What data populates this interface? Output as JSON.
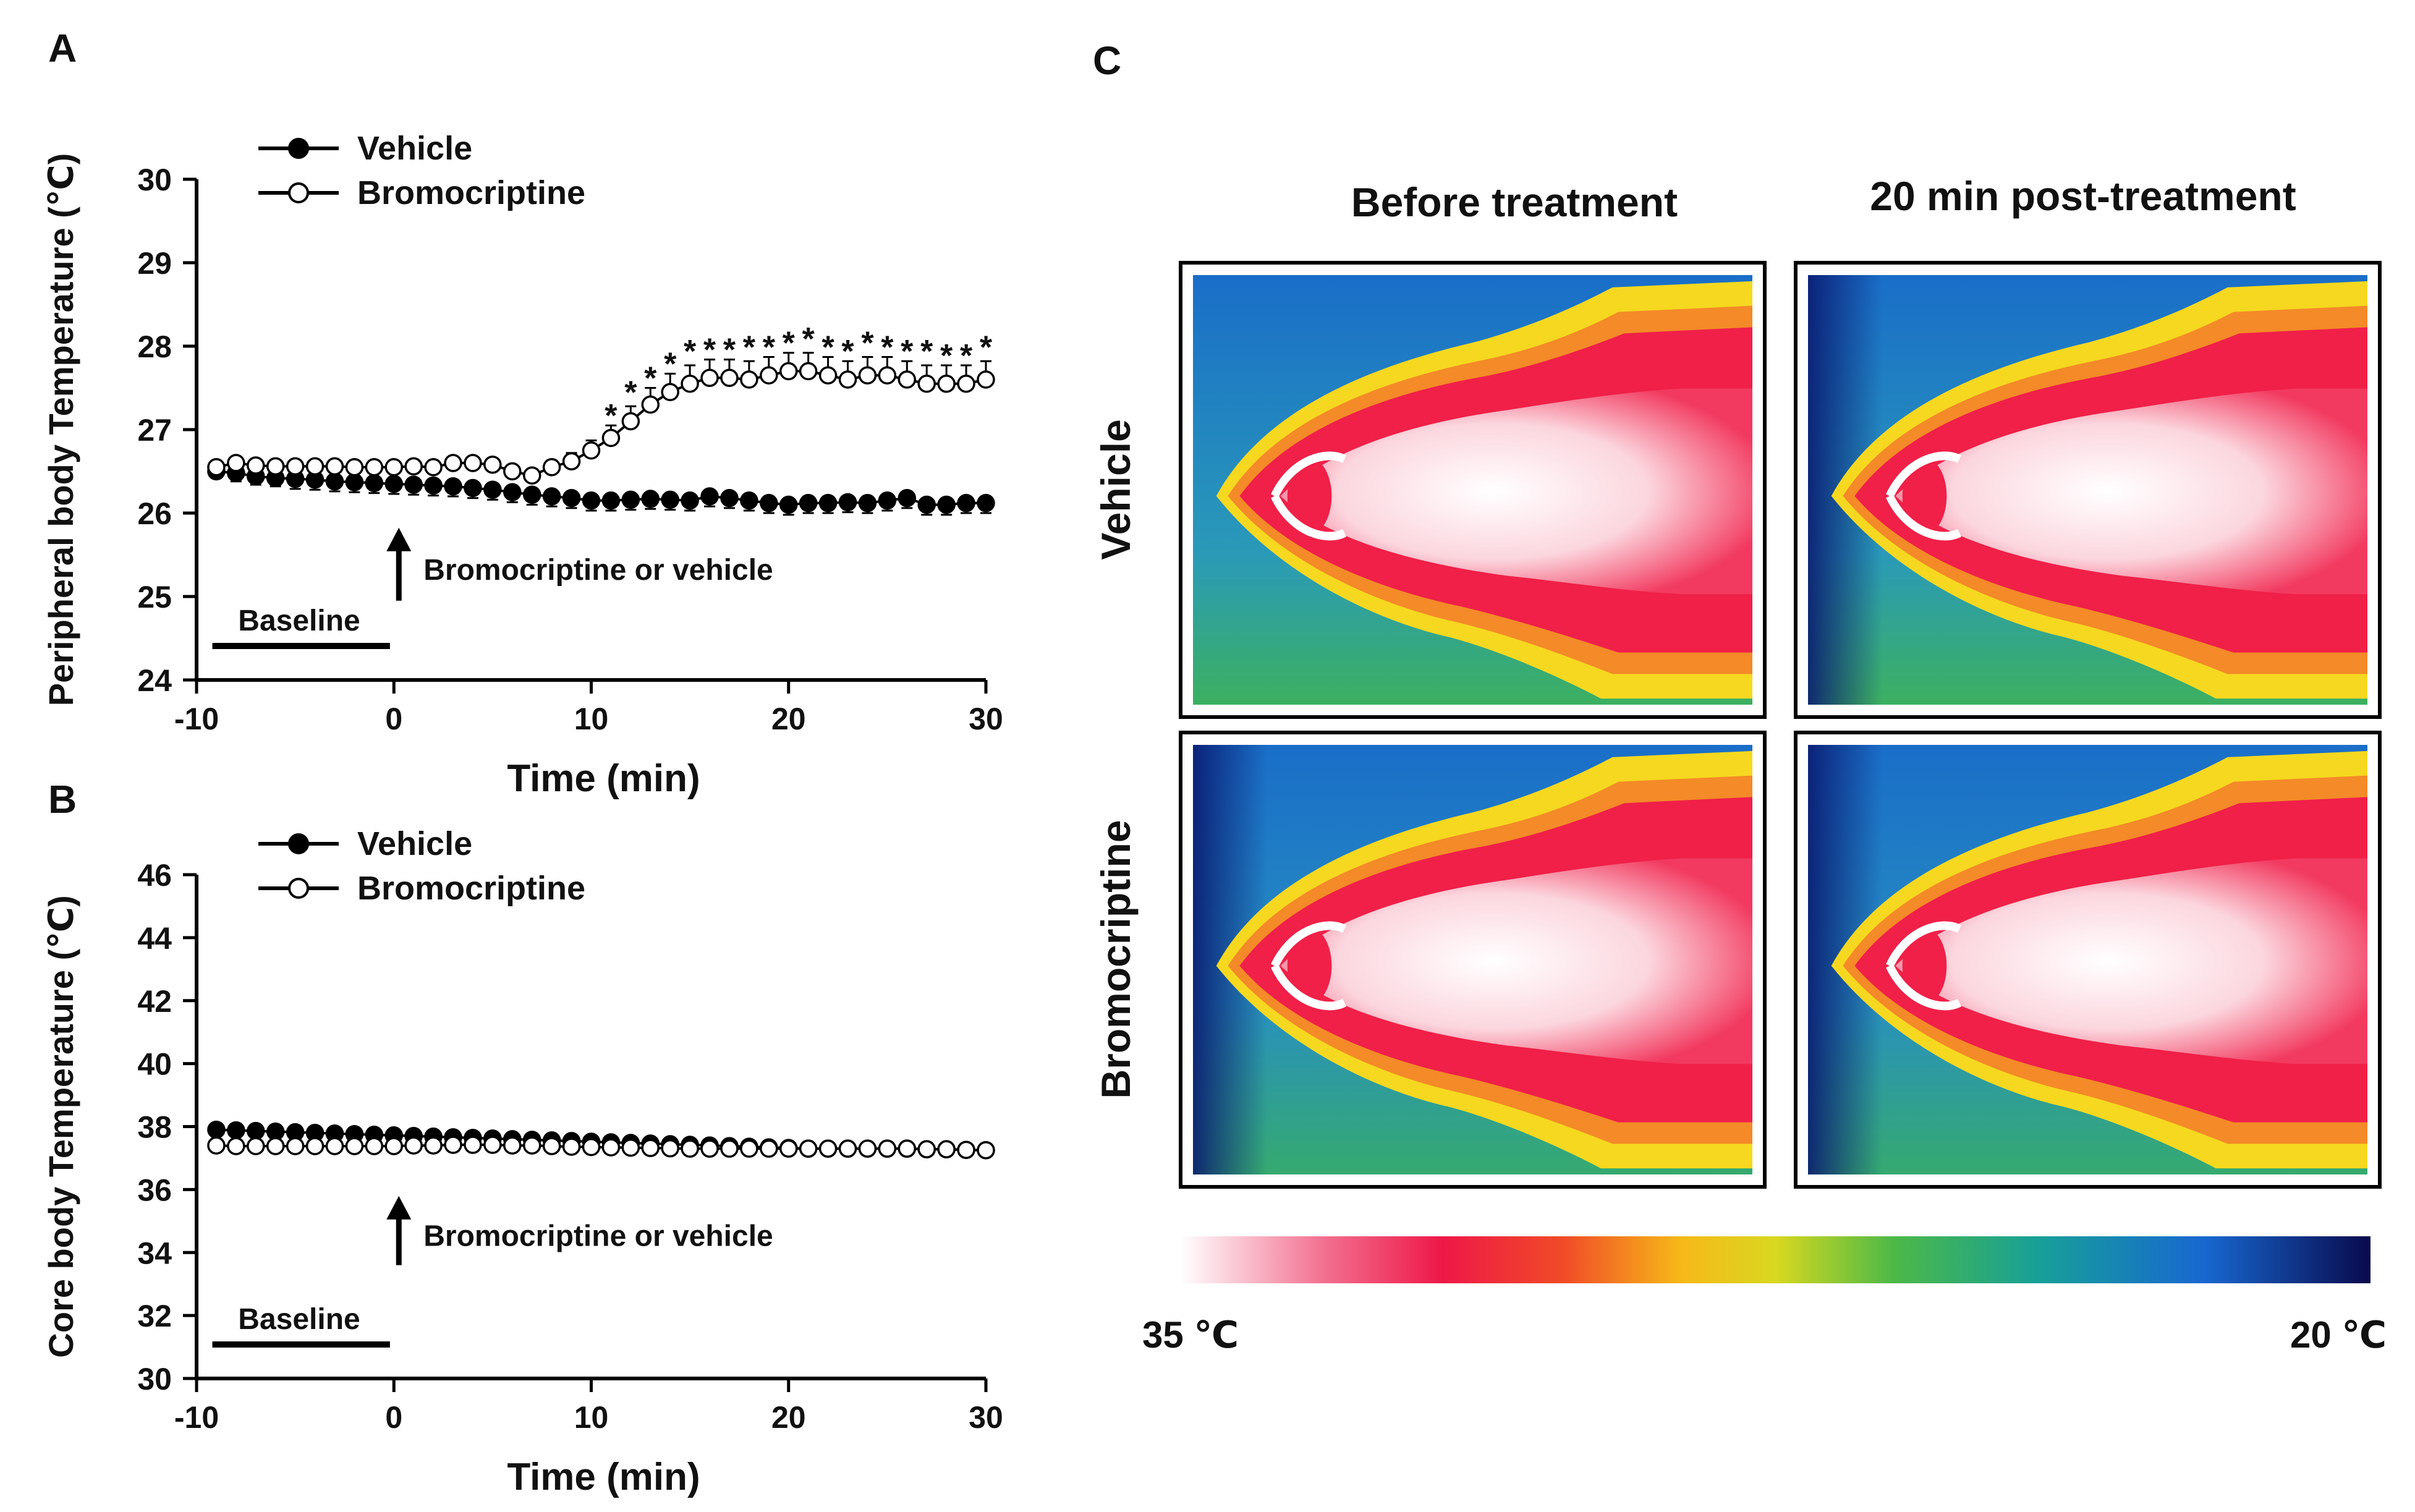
{
  "panel_letters": {
    "a": "A",
    "b": "B",
    "c": "C"
  },
  "chart_data": [
    {
      "id": "A",
      "type": "line",
      "ylabel": "Peripheral body Temperature (℃)",
      "xlabel": "Time (min)",
      "xlim": [
        -10,
        30
      ],
      "ylim": [
        24,
        30
      ],
      "xticks": [
        "-10",
        "0",
        "10",
        "20",
        "30"
      ],
      "yticks": [
        "24",
        "25",
        "26",
        "27",
        "28",
        "29",
        "30"
      ],
      "legend": [
        "Vehicle",
        "Bromocriptine"
      ],
      "annotation": "Bromocriptine  or vehicle",
      "baseline_label": "Baseline",
      "significance_mark": "*",
      "significant_x": [
        11,
        12,
        13,
        14,
        15,
        16,
        17,
        18,
        19,
        20,
        21,
        22,
        23,
        24,
        25,
        26,
        27,
        28,
        29,
        30
      ],
      "series": [
        {
          "name": "Vehicle",
          "marker": "filled",
          "x": [
            -9,
            -8,
            -7,
            -6,
            -5,
            -4,
            -3,
            -2,
            -1,
            0,
            1,
            2,
            3,
            4,
            5,
            6,
            7,
            8,
            9,
            10,
            11,
            12,
            13,
            14,
            15,
            16,
            17,
            18,
            19,
            20,
            21,
            22,
            23,
            24,
            25,
            26,
            27,
            28,
            29,
            30
          ],
          "y": [
            26.5,
            26.48,
            26.44,
            26.42,
            26.41,
            26.4,
            26.38,
            26.37,
            26.36,
            26.35,
            26.34,
            26.33,
            26.32,
            26.3,
            26.28,
            26.25,
            26.22,
            26.2,
            26.18,
            26.15,
            26.15,
            26.16,
            26.17,
            26.16,
            26.15,
            26.2,
            26.18,
            26.15,
            26.12,
            26.1,
            26.12,
            26.12,
            26.13,
            26.12,
            26.15,
            26.18,
            26.1,
            26.1,
            26.12,
            26.12
          ],
          "err": [
            0.08,
            0.1,
            0.1,
            0.1,
            0.12,
            0.12,
            0.12,
            0.12,
            0.12,
            0.12,
            0.12,
            0.12,
            0.12,
            0.12,
            0.12,
            0.12,
            0.12,
            0.12,
            0.12,
            0.12,
            0.12,
            0.12,
            0.12,
            0.12,
            0.12,
            0.12,
            0.12,
            0.12,
            0.12,
            0.12,
            0.12,
            0.12,
            0.12,
            0.12,
            0.12,
            0.12,
            0.12,
            0.12,
            0.12,
            0.12
          ]
        },
        {
          "name": "Bromocriptine",
          "marker": "open",
          "x": [
            -9,
            -8,
            -7,
            -6,
            -5,
            -4,
            -3,
            -2,
            -1,
            0,
            1,
            2,
            3,
            4,
            5,
            6,
            7,
            8,
            9,
            10,
            11,
            12,
            13,
            14,
            15,
            16,
            17,
            18,
            19,
            20,
            21,
            22,
            23,
            24,
            25,
            26,
            27,
            28,
            29,
            30
          ],
          "y": [
            26.55,
            26.6,
            26.57,
            26.56,
            26.56,
            26.56,
            26.56,
            26.55,
            26.55,
            26.55,
            26.56,
            26.55,
            26.6,
            26.6,
            26.58,
            26.5,
            26.45,
            26.55,
            26.62,
            26.75,
            26.9,
            27.1,
            27.3,
            27.45,
            27.55,
            27.62,
            27.62,
            27.6,
            27.65,
            27.7,
            27.7,
            27.65,
            27.6,
            27.65,
            27.65,
            27.6,
            27.55,
            27.55,
            27.55,
            27.6
          ],
          "err": [
            0.05,
            0.06,
            0.06,
            0.06,
            0.06,
            0.06,
            0.06,
            0.06,
            0.06,
            0.06,
            0.06,
            0.06,
            0.06,
            0.06,
            0.06,
            0.06,
            0.06,
            0.08,
            0.1,
            0.12,
            0.15,
            0.18,
            0.2,
            0.22,
            0.22,
            0.22,
            0.22,
            0.22,
            0.22,
            0.22,
            0.22,
            0.22,
            0.22,
            0.22,
            0.22,
            0.22,
            0.22,
            0.22,
            0.22,
            0.22
          ]
        }
      ]
    },
    {
      "id": "B",
      "type": "line",
      "ylabel": "Core body Temperature (℃)",
      "xlabel": "Time (min)",
      "xlim": [
        -10,
        30
      ],
      "ylim": [
        30,
        46
      ],
      "xticks": [
        "-10",
        "0",
        "10",
        "20",
        "30"
      ],
      "yticks": [
        "30",
        "32",
        "34",
        "36",
        "38",
        "40",
        "42",
        "44",
        "46"
      ],
      "legend": [
        "Vehicle",
        "Bromocriptine"
      ],
      "annotation": "Bromocriptine  or vehicle",
      "baseline_label": "Baseline",
      "series": [
        {
          "name": "Vehicle",
          "marker": "filled",
          "x": [
            -9,
            -8,
            -7,
            -6,
            -5,
            -4,
            -3,
            -2,
            -1,
            0,
            1,
            2,
            3,
            4,
            5,
            6,
            7,
            8,
            9,
            10,
            11,
            12,
            13,
            14,
            15,
            16,
            17,
            18,
            19,
            20,
            21,
            22,
            23,
            24,
            25,
            26,
            27,
            28,
            29,
            30
          ],
          "y": [
            37.9,
            37.88,
            37.86,
            37.84,
            37.82,
            37.8,
            37.78,
            37.76,
            37.74,
            37.72,
            37.7,
            37.68,
            37.66,
            37.64,
            37.62,
            37.6,
            37.58,
            37.56,
            37.54,
            37.52,
            37.5,
            37.48,
            37.46,
            37.44,
            37.42,
            37.4,
            37.38,
            37.36,
            37.34,
            37.32,
            37.3,
            37.3,
            37.3,
            37.3,
            37.3,
            37.3,
            37.28,
            37.28,
            37.26,
            37.25
          ],
          "err": [
            0.15,
            0.15,
            0.15,
            0.15,
            0.15,
            0.15,
            0.15,
            0.15,
            0.15,
            0.15,
            0.12,
            0.12,
            0.12,
            0.12,
            0.12,
            0.12,
            0.12,
            0.12,
            0.12,
            0.12,
            0.1,
            0.1,
            0.1,
            0.1,
            0.1,
            0.1,
            0.1,
            0.1,
            0.1,
            0.1,
            0.1,
            0.1,
            0.1,
            0.1,
            0.1,
            0.1,
            0.1,
            0.1,
            0.1,
            0.1
          ]
        },
        {
          "name": "Bromocriptine",
          "marker": "open",
          "x": [
            -9,
            -8,
            -7,
            -6,
            -5,
            -4,
            -3,
            -2,
            -1,
            0,
            1,
            2,
            3,
            4,
            5,
            6,
            7,
            8,
            9,
            10,
            11,
            12,
            13,
            14,
            15,
            16,
            17,
            18,
            19,
            20,
            21,
            22,
            23,
            24,
            25,
            26,
            27,
            28,
            29,
            30
          ],
          "y": [
            37.4,
            37.38,
            37.38,
            37.38,
            37.38,
            37.38,
            37.38,
            37.38,
            37.38,
            37.38,
            37.4,
            37.4,
            37.42,
            37.42,
            37.42,
            37.4,
            37.4,
            37.38,
            37.36,
            37.35,
            37.34,
            37.33,
            37.32,
            37.31,
            37.3,
            37.3,
            37.3,
            37.3,
            37.3,
            37.3,
            37.3,
            37.3,
            37.3,
            37.3,
            37.3,
            37.3,
            37.28,
            37.28,
            37.26,
            37.25
          ],
          "err": [
            0.1,
            0.1,
            0.1,
            0.1,
            0.1,
            0.1,
            0.1,
            0.1,
            0.1,
            0.1,
            0.1,
            0.1,
            0.1,
            0.1,
            0.1,
            0.1,
            0.1,
            0.1,
            0.1,
            0.1,
            0.1,
            0.1,
            0.1,
            0.1,
            0.1,
            0.1,
            0.1,
            0.1,
            0.1,
            0.1,
            0.1,
            0.1,
            0.1,
            0.1,
            0.1,
            0.1,
            0.1,
            0.1,
            0.1,
            0.1
          ]
        }
      ]
    }
  ],
  "thermal": {
    "col_titles": [
      "Before treatment",
      "20 min post-treatment"
    ],
    "row_titles": [
      "Vehicle",
      "Bromocriptine"
    ],
    "scale_left": "35 ℃",
    "scale_right": "20 ℃",
    "colors": {
      "hot": "#ffffff",
      "warm": "#f0204a",
      "mid": "#f7e020",
      "cool": "#3cb24a",
      "cold": "#1060c8",
      "coldest": "#0a0a50"
    }
  }
}
